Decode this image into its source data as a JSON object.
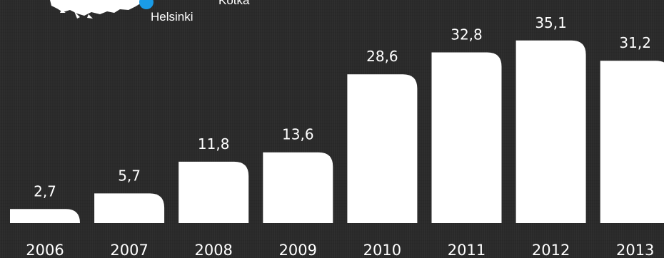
{
  "map": {
    "cities": [
      {
        "name": "Helsinki",
        "color": "#1a9be6"
      },
      {
        "name": "Kotka"
      }
    ]
  },
  "chart_data": {
    "type": "bar",
    "categories": [
      "2006",
      "2007",
      "2008",
      "2009",
      "2010",
      "2011",
      "2012",
      "2013"
    ],
    "values": [
      2.7,
      5.7,
      11.8,
      13.6,
      28.6,
      32.8,
      35.1,
      31.2
    ],
    "value_labels": [
      "2,7",
      "5,7",
      "11,8",
      "13,6",
      "28,6",
      "32,8",
      "35,1",
      "31,2"
    ],
    "title": "",
    "xlabel": "",
    "ylabel": "",
    "ylim": [
      0,
      36
    ],
    "grid": false,
    "legend": "none",
    "bar_color": "#ffffff",
    "text_color": "#ffffff",
    "background": "#2a2a2a"
  }
}
